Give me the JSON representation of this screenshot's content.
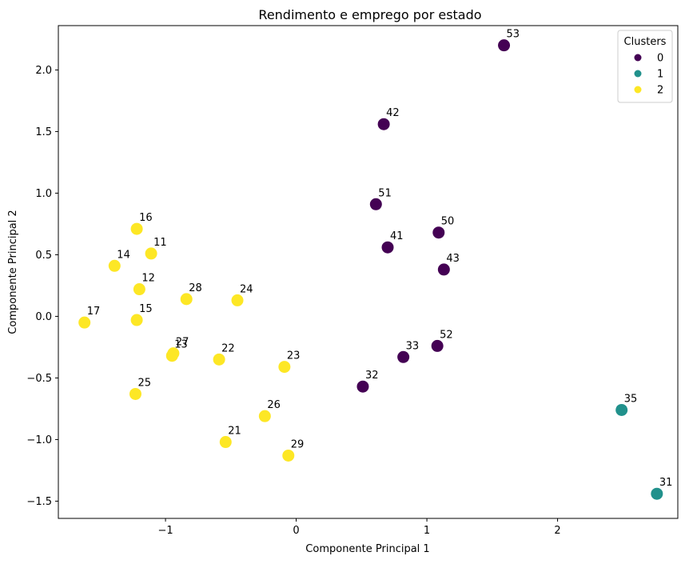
{
  "chart_data": {
    "type": "scatter",
    "title": "Rendimento e emprego por estado",
    "xlabel": "Componente Principal 1",
    "ylabel": "Componente Principal 2",
    "xlim": [
      -1.82,
      2.92
    ],
    "ylim": [
      -1.64,
      2.36
    ],
    "x_ticks": [
      -1,
      0,
      1,
      2
    ],
    "x_tick_labels": [
      "−1",
      "0",
      "1",
      "2"
    ],
    "y_ticks": [
      -1.5,
      -1.0,
      -0.5,
      0.0,
      0.5,
      1.0,
      1.5,
      2.0
    ],
    "y_tick_labels": [
      "−1.5",
      "−1.0",
      "−0.5",
      "0.0",
      "0.5",
      "1.0",
      "1.5",
      "2.0"
    ],
    "grid": false,
    "legend": {
      "title": "Clusters",
      "placement": "top-right",
      "entries": [
        {
          "label": "0",
          "color": "#440154"
        },
        {
          "label": "1",
          "color": "#21918c"
        },
        {
          "label": "2",
          "color": "#fde725"
        }
      ]
    },
    "points": [
      {
        "label": "53",
        "x": 1.59,
        "y": 2.2,
        "cluster": 0
      },
      {
        "label": "42",
        "x": 0.67,
        "y": 1.56,
        "cluster": 0
      },
      {
        "label": "51",
        "x": 0.61,
        "y": 0.91,
        "cluster": 0
      },
      {
        "label": "50",
        "x": 1.09,
        "y": 0.68,
        "cluster": 0
      },
      {
        "label": "41",
        "x": 0.7,
        "y": 0.56,
        "cluster": 0
      },
      {
        "label": "43",
        "x": 1.13,
        "y": 0.38,
        "cluster": 0
      },
      {
        "label": "52",
        "x": 1.08,
        "y": -0.24,
        "cluster": 0
      },
      {
        "label": "33",
        "x": 0.82,
        "y": -0.33,
        "cluster": 0
      },
      {
        "label": "32",
        "x": 0.51,
        "y": -0.57,
        "cluster": 0
      },
      {
        "label": "35",
        "x": 2.49,
        "y": -0.76,
        "cluster": 1
      },
      {
        "label": "31",
        "x": 2.76,
        "y": -1.44,
        "cluster": 1
      },
      {
        "label": "16",
        "x": -1.22,
        "y": 0.71,
        "cluster": 2
      },
      {
        "label": "11",
        "x": -1.11,
        "y": 0.51,
        "cluster": 2
      },
      {
        "label": "14",
        "x": -1.39,
        "y": 0.41,
        "cluster": 2
      },
      {
        "label": "12",
        "x": -1.2,
        "y": 0.22,
        "cluster": 2
      },
      {
        "label": "28",
        "x": -0.84,
        "y": 0.14,
        "cluster": 2
      },
      {
        "label": "24",
        "x": -0.45,
        "y": 0.13,
        "cluster": 2
      },
      {
        "label": "17",
        "x": -1.62,
        "y": -0.05,
        "cluster": 2
      },
      {
        "label": "15",
        "x": -1.22,
        "y": -0.03,
        "cluster": 2
      },
      {
        "label": "27",
        "x": -0.94,
        "y": -0.3,
        "cluster": 2
      },
      {
        "label": "13",
        "x": -0.95,
        "y": -0.32,
        "cluster": 2
      },
      {
        "label": "22",
        "x": -0.59,
        "y": -0.35,
        "cluster": 2
      },
      {
        "label": "23",
        "x": -0.09,
        "y": -0.41,
        "cluster": 2
      },
      {
        "label": "25",
        "x": -1.23,
        "y": -0.63,
        "cluster": 2
      },
      {
        "label": "26",
        "x": -0.24,
        "y": -0.81,
        "cluster": 2
      },
      {
        "label": "21",
        "x": -0.54,
        "y": -1.02,
        "cluster": 2
      },
      {
        "label": "29",
        "x": -0.06,
        "y": -1.13,
        "cluster": 2
      }
    ]
  }
}
